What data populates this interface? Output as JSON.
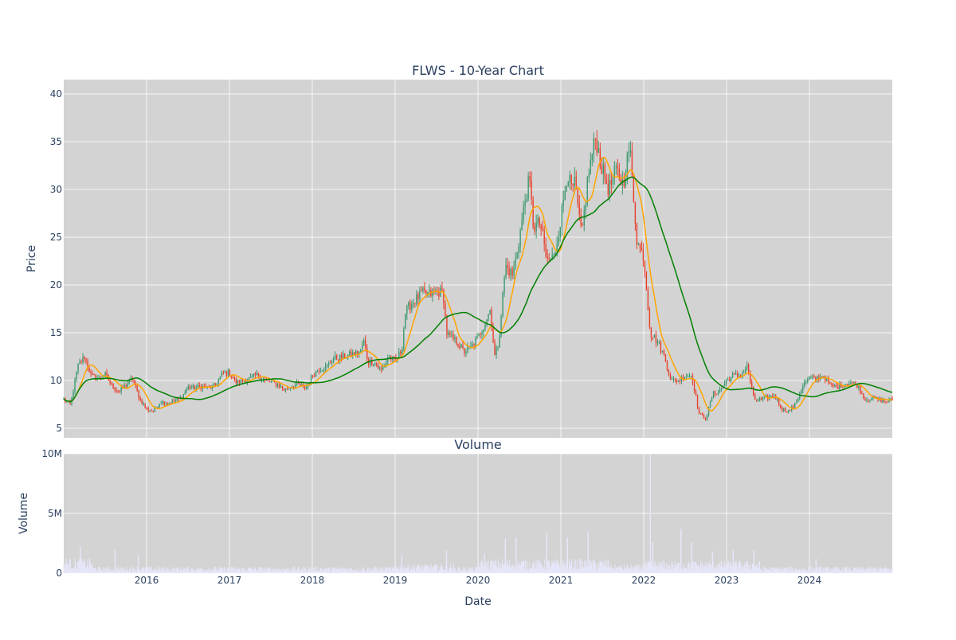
{
  "chart_data": {
    "type": "candlestick",
    "title": "FLWS - 10-Year Chart",
    "price_panel": {
      "ylabel": "Price",
      "ylim": [
        4,
        41.5
      ],
      "yticks": [
        5,
        10,
        15,
        20,
        25,
        30,
        35,
        40
      ],
      "up_color": "#3d9970",
      "down_color": "#e8412c",
      "series": [
        {
          "name": "",
          "color": "#ffa500"
        },
        {
          "name": "",
          "color": "#008000"
        }
      ],
      "close_anchors": [
        [
          2015.0,
          8.0
        ],
        [
          2015.08,
          7.4
        ],
        [
          2015.17,
          11.5
        ],
        [
          2015.25,
          12.5
        ],
        [
          2015.33,
          10.5
        ],
        [
          2015.42,
          10.2
        ],
        [
          2015.5,
          10.6
        ],
        [
          2015.58,
          9.5
        ],
        [
          2015.67,
          8.8
        ],
        [
          2015.75,
          9.5
        ],
        [
          2015.83,
          10.2
        ],
        [
          2015.92,
          8.0
        ],
        [
          2016.0,
          7.0
        ],
        [
          2016.08,
          6.8
        ],
        [
          2016.17,
          7.8
        ],
        [
          2016.25,
          7.6
        ],
        [
          2016.33,
          7.8
        ],
        [
          2016.42,
          8.2
        ],
        [
          2016.5,
          9.3
        ],
        [
          2016.58,
          9.2
        ],
        [
          2016.67,
          9.4
        ],
        [
          2016.75,
          9.2
        ],
        [
          2016.83,
          9.5
        ],
        [
          2016.92,
          10.8
        ],
        [
          2017.0,
          10.8
        ],
        [
          2017.08,
          9.8
        ],
        [
          2017.17,
          10.0
        ],
        [
          2017.25,
          10.2
        ],
        [
          2017.33,
          10.6
        ],
        [
          2017.42,
          10.0
        ],
        [
          2017.5,
          9.8
        ],
        [
          2017.58,
          9.6
        ],
        [
          2017.67,
          9.0
        ],
        [
          2017.75,
          9.4
        ],
        [
          2017.83,
          9.6
        ],
        [
          2017.92,
          9.2
        ],
        [
          2018.0,
          10.5
        ],
        [
          2018.08,
          11.2
        ],
        [
          2018.17,
          11.4
        ],
        [
          2018.25,
          12.3
        ],
        [
          2018.33,
          12.4
        ],
        [
          2018.42,
          12.6
        ],
        [
          2018.5,
          12.8
        ],
        [
          2018.58,
          13.0
        ],
        [
          2018.62,
          14.2
        ],
        [
          2018.67,
          12.0
        ],
        [
          2018.75,
          11.8
        ],
        [
          2018.83,
          11.0
        ],
        [
          2018.92,
          12.5
        ],
        [
          2019.0,
          12.0
        ],
        [
          2019.08,
          13.2
        ],
        [
          2019.12,
          17.0
        ],
        [
          2019.17,
          17.8
        ],
        [
          2019.25,
          18.5
        ],
        [
          2019.33,
          19.2
        ],
        [
          2019.42,
          19.0
        ],
        [
          2019.5,
          19.3
        ],
        [
          2019.58,
          19.2
        ],
        [
          2019.62,
          15.0
        ],
        [
          2019.67,
          14.5
        ],
        [
          2019.75,
          14.0
        ],
        [
          2019.83,
          13.0
        ],
        [
          2019.92,
          13.5
        ],
        [
          2020.0,
          14.5
        ],
        [
          2020.08,
          16.0
        ],
        [
          2020.15,
          17.5
        ],
        [
          2020.2,
          12.5
        ],
        [
          2020.25,
          14.0
        ],
        [
          2020.33,
          22.0
        ],
        [
          2020.42,
          21.0
        ],
        [
          2020.5,
          25.0
        ],
        [
          2020.58,
          29.5
        ],
        [
          2020.62,
          31.0
        ],
        [
          2020.67,
          26.0
        ],
        [
          2020.75,
          26.5
        ],
        [
          2020.83,
          22.5
        ],
        [
          2020.92,
          23.0
        ],
        [
          2021.0,
          27.0
        ],
        [
          2021.08,
          32.0
        ],
        [
          2021.12,
          30.0
        ],
        [
          2021.17,
          30.5
        ],
        [
          2021.25,
          25.0
        ],
        [
          2021.33,
          31.5
        ],
        [
          2021.42,
          35.5
        ],
        [
          2021.5,
          32.0
        ],
        [
          2021.58,
          30.0
        ],
        [
          2021.67,
          32.0
        ],
        [
          2021.75,
          30.5
        ],
        [
          2021.83,
          34.5
        ],
        [
          2021.92,
          24.5
        ],
        [
          2022.0,
          23.0
        ],
        [
          2022.08,
          15.0
        ],
        [
          2022.17,
          14.0
        ],
        [
          2022.25,
          12.5
        ],
        [
          2022.33,
          10.0
        ],
        [
          2022.42,
          10.0
        ],
        [
          2022.5,
          10.5
        ],
        [
          2022.58,
          10.5
        ],
        [
          2022.67,
          6.5
        ],
        [
          2022.75,
          6.0
        ],
        [
          2022.83,
          8.5
        ],
        [
          2022.92,
          9.0
        ],
        [
          2023.0,
          10.0
        ],
        [
          2023.08,
          10.5
        ],
        [
          2023.17,
          10.5
        ],
        [
          2023.25,
          11.5
        ],
        [
          2023.33,
          8.0
        ],
        [
          2023.42,
          8.0
        ],
        [
          2023.5,
          8.2
        ],
        [
          2023.58,
          8.4
        ],
        [
          2023.67,
          7.0
        ],
        [
          2023.75,
          6.8
        ],
        [
          2023.83,
          7.5
        ],
        [
          2023.92,
          9.5
        ],
        [
          2024.0,
          10.2
        ],
        [
          2024.08,
          10.2
        ],
        [
          2024.17,
          10.5
        ],
        [
          2024.25,
          9.5
        ],
        [
          2024.33,
          9.3
        ],
        [
          2024.42,
          9.6
        ],
        [
          2024.5,
          9.8
        ],
        [
          2024.58,
          9.5
        ],
        [
          2024.67,
          8.0
        ],
        [
          2024.75,
          8.2
        ],
        [
          2024.83,
          8.0
        ],
        [
          2024.92,
          7.8
        ],
        [
          2025.0,
          8.0
        ]
      ]
    },
    "volume_panel": {
      "title": "Volume",
      "ylabel": "Volume",
      "ylim": [
        0,
        10000000
      ],
      "yticks": [
        0,
        5000000,
        10000000
      ],
      "ytick_labels": [
        "0",
        "5M",
        "10M"
      ],
      "bar_color": "#e6e6fa",
      "spikes": [
        [
          2015.2,
          2200000
        ],
        [
          2015.62,
          2000000
        ],
        [
          2015.9,
          1500000
        ],
        [
          2019.08,
          1500000
        ],
        [
          2019.62,
          1900000
        ],
        [
          2020.08,
          1600000
        ],
        [
          2020.33,
          2900000
        ],
        [
          2020.46,
          3000000
        ],
        [
          2020.83,
          3400000
        ],
        [
          2021.08,
          3000000
        ],
        [
          2021.33,
          3500000
        ],
        [
          2022.08,
          10000000
        ],
        [
          2022.11,
          2600000
        ],
        [
          2022.45,
          3700000
        ],
        [
          2022.58,
          2600000
        ],
        [
          2022.83,
          1800000
        ],
        [
          2023.08,
          1900000
        ],
        [
          2023.33,
          1900000
        ],
        [
          2024.08,
          1200000
        ]
      ]
    },
    "x_axis": {
      "xlabel": "Date",
      "xlim": [
        2015.0,
        2025.0
      ],
      "ticks": [
        2016,
        2017,
        2018,
        2019,
        2020,
        2021,
        2022,
        2023,
        2024
      ],
      "tick_labels": [
        "2016",
        "2017",
        "2018",
        "2019",
        "2020",
        "2021",
        "2022",
        "2023",
        "2024"
      ]
    },
    "grid": true
  }
}
